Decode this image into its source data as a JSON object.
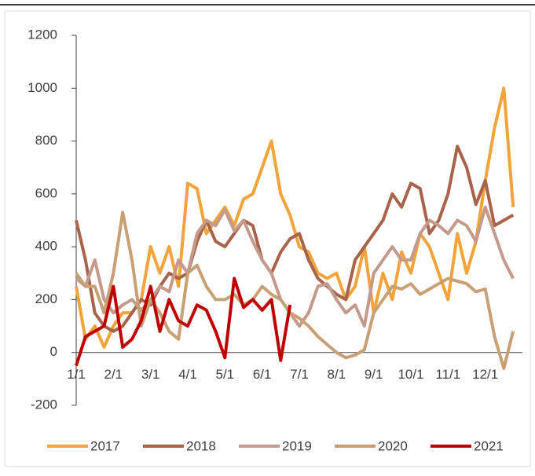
{
  "chart_data": {
    "type": "line",
    "categories": [
      "1/1",
      null,
      null,
      null,
      "2/1",
      null,
      null,
      null,
      "3/1",
      null,
      null,
      null,
      "4/1",
      null,
      null,
      null,
      "5/1",
      null,
      null,
      null,
      "6/1",
      null,
      null,
      null,
      "7/1",
      null,
      null,
      null,
      "8/1",
      null,
      null,
      null,
      "9/1",
      null,
      null,
      null,
      "10/1",
      null,
      null,
      null,
      "11/1",
      null,
      null,
      null,
      "12/1",
      null,
      null,
      null
    ],
    "series": [
      {
        "name": "2017",
        "color": "#f2a33a",
        "values": [
          250,
          50,
          100,
          20,
          100,
          150,
          150,
          200,
          400,
          300,
          400,
          250,
          640,
          620,
          450,
          500,
          550,
          480,
          580,
          600,
          700,
          800,
          600,
          520,
          400,
          380,
          300,
          280,
          300,
          200,
          250,
          400,
          150,
          300,
          200,
          380,
          300,
          450,
          400,
          300,
          200,
          450,
          300,
          420,
          650,
          850,
          1000,
          550
        ]
      },
      {
        "name": "2018",
        "color": "#a9634a",
        "values": [
          500,
          350,
          150,
          100,
          80,
          100,
          150,
          200,
          180,
          250,
          300,
          280,
          300,
          420,
          500,
          420,
          400,
          450,
          500,
          480,
          350,
          300,
          380,
          430,
          450,
          350,
          280,
          250,
          220,
          200,
          350,
          400,
          450,
          500,
          600,
          550,
          640,
          620,
          450,
          500,
          600,
          780,
          700,
          560,
          650,
          480,
          500,
          520
        ]
      },
      {
        "name": "2019",
        "color": "#c49a8c",
        "values": [
          280,
          250,
          350,
          200,
          150,
          180,
          200,
          160,
          200,
          250,
          230,
          350,
          300,
          450,
          500,
          480,
          540,
          460,
          500,
          420,
          350,
          300,
          200,
          150,
          100,
          150,
          250,
          260,
          200,
          150,
          180,
          100,
          300,
          350,
          400,
          350,
          350,
          450,
          500,
          480,
          450,
          500,
          480,
          420,
          550,
          450,
          350,
          280
        ]
      },
      {
        "name": "2020",
        "color": "#c9a074",
        "values": [
          300,
          250,
          250,
          150,
          300,
          530,
          350,
          100,
          200,
          150,
          80,
          50,
          300,
          330,
          250,
          200,
          200,
          220,
          180,
          200,
          250,
          220,
          200,
          150,
          130,
          100,
          60,
          30,
          0,
          -20,
          -10,
          10,
          150,
          200,
          250,
          240,
          260,
          220,
          240,
          260,
          280,
          270,
          260,
          230,
          240,
          60,
          -60,
          80
        ]
      },
      {
        "name": "2021",
        "color": "#c00000",
        "values": [
          -50,
          60,
          80,
          100,
          250,
          20,
          50,
          120,
          250,
          80,
          200,
          120,
          100,
          180,
          160,
          80,
          -20,
          280,
          170,
          200,
          160,
          200,
          -30,
          180,
          null,
          null,
          null,
          null,
          null,
          null,
          null,
          null,
          null,
          null,
          null,
          null,
          null,
          null,
          null,
          null,
          null,
          null,
          null,
          null,
          null,
          null,
          null,
          null
        ]
      }
    ],
    "ylim": [
      -200,
      1200
    ],
    "yticks": [
      -200,
      0,
      200,
      400,
      600,
      800,
      1000,
      1200
    ]
  }
}
